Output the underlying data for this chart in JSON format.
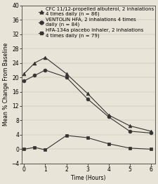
{
  "time": [
    0,
    0.5,
    1,
    2,
    3,
    4,
    5,
    6
  ],
  "cfc_values": [
    21.0,
    24.0,
    25.5,
    21.0,
    15.5,
    9.5,
    6.5,
    5.0
  ],
  "ventolin_values": [
    19.0,
    20.5,
    22.0,
    20.0,
    14.0,
    9.0,
    5.0,
    4.5
  ],
  "placebo_values": [
    0.0,
    0.5,
    -0.2,
    3.8,
    3.2,
    1.5,
    0.3,
    0.0
  ],
  "cfc_label": "CFC 11/12-propelled albuterol, 2 inhalations\n4 times daily (n = 86)",
  "ventolin_label": "VENTOLIN HFA, 2 inhalations 4 times\ndaily (n = 84)",
  "placebo_label": "HFA-134a placebo inhaler, 2 inhalations\n4 times daily (n = 79)",
  "xlabel": "Time (Hours)",
  "ylabel": "Mean % Change From Baseline",
  "ylim": [
    -4,
    40
  ],
  "xlim": [
    -0.1,
    6.2
  ],
  "yticks": [
    -4,
    0,
    4,
    8,
    12,
    16,
    20,
    24,
    28,
    32,
    36,
    40
  ],
  "xticks": [
    0,
    1,
    2,
    3,
    4,
    5,
    6
  ],
  "line_color": "#333333",
  "background_color": "#e8e4d8",
  "axis_fontsize": 5.5,
  "legend_fontsize": 5.0,
  "tick_fontsize": 5.5
}
